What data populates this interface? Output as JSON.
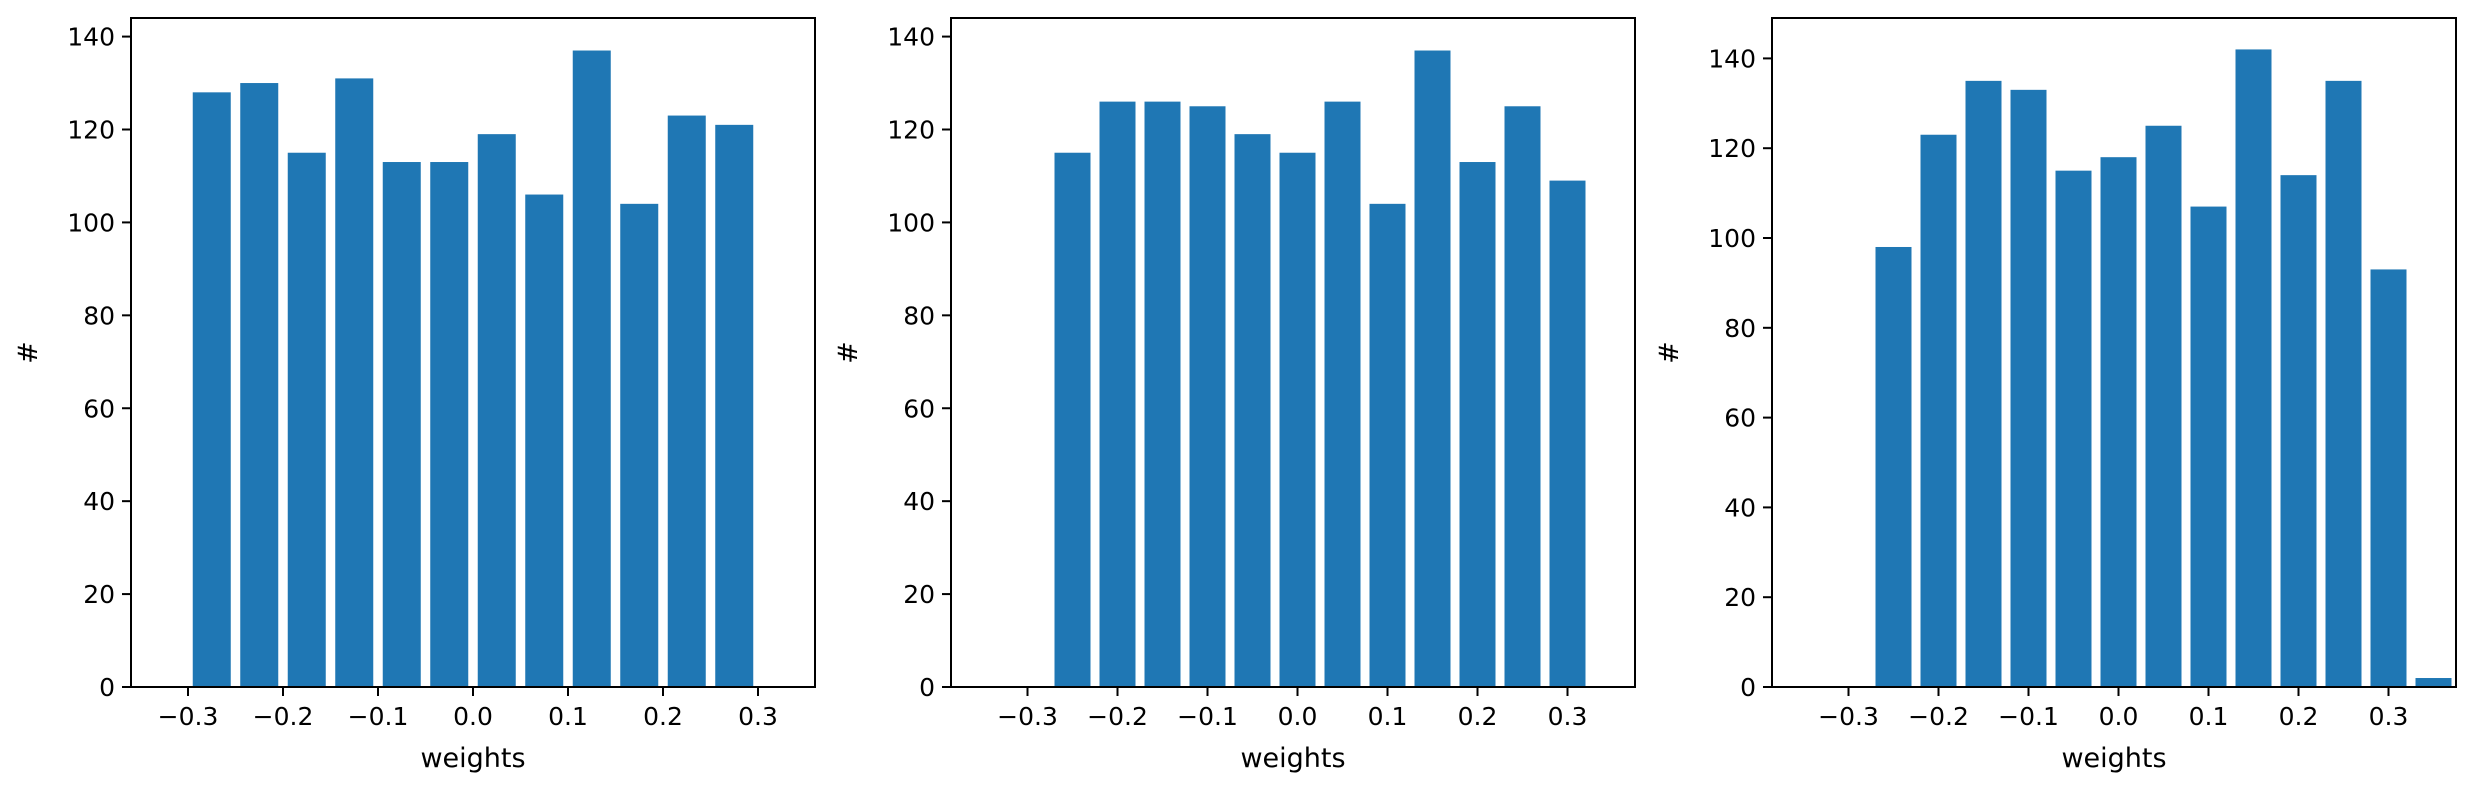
{
  "chart_data": [
    {
      "type": "bar",
      "x": [
        -0.275,
        -0.225,
        -0.175,
        -0.125,
        -0.075,
        -0.025,
        0.025,
        0.075,
        0.125,
        0.175,
        0.225,
        0.275
      ],
      "values": [
        128,
        130,
        115,
        131,
        113,
        113,
        119,
        106,
        137,
        104,
        123,
        121
      ],
      "xlabel": "weights",
      "ylabel": "#",
      "xlim": [
        -0.36,
        0.36
      ],
      "ylim": [
        0,
        144
      ],
      "xticks": [
        -0.3,
        -0.2,
        -0.1,
        0.0,
        0.1,
        0.2,
        0.3
      ],
      "xtick_labels": [
        "−0.3",
        "−0.2",
        "−0.1",
        "0.0",
        "0.1",
        "0.2",
        "0.3"
      ],
      "yticks": [
        0,
        20,
        40,
        60,
        80,
        100,
        120,
        140
      ],
      "ytick_labels": [
        "0",
        "20",
        "40",
        "60",
        "80",
        "100",
        "120",
        "140"
      ],
      "bar_width": 0.04,
      "color": "#1f77b4",
      "grid": false
    },
    {
      "type": "bar",
      "x": [
        -0.3,
        -0.25,
        -0.2,
        -0.15,
        -0.1,
        -0.05,
        0.0,
        0.05,
        0.1,
        0.15,
        0.2,
        0.25,
        0.3
      ],
      "values": [
        0,
        115,
        126,
        126,
        125,
        119,
        115,
        126,
        104,
        137,
        113,
        125,
        109
      ],
      "xlabel": "weights",
      "ylabel": "#",
      "xlim": [
        -0.385,
        0.375
      ],
      "ylim": [
        0,
        144
      ],
      "xticks": [
        -0.3,
        -0.2,
        -0.1,
        0.0,
        0.1,
        0.2,
        0.3
      ],
      "xtick_labels": [
        "−0.3",
        "−0.2",
        "−0.1",
        "0.0",
        "0.1",
        "0.2",
        "0.3"
      ],
      "yticks": [
        0,
        20,
        40,
        60,
        80,
        100,
        120,
        140
      ],
      "ytick_labels": [
        "0",
        "20",
        "40",
        "60",
        "80",
        "100",
        "120",
        "140"
      ],
      "bar_width": 0.04,
      "color": "#1f77b4",
      "grid": false
    },
    {
      "type": "bar",
      "x": [
        -0.3,
        -0.25,
        -0.2,
        -0.15,
        -0.1,
        -0.05,
        0.0,
        0.05,
        0.1,
        0.15,
        0.2,
        0.25,
        0.3,
        0.35
      ],
      "values": [
        0,
        98,
        123,
        135,
        133,
        115,
        118,
        125,
        107,
        142,
        114,
        135,
        93,
        2
      ],
      "xlabel": "weights",
      "ylabel": "#",
      "xlim": [
        -0.385,
        0.375
      ],
      "ylim": [
        0,
        149
      ],
      "xticks": [
        -0.3,
        -0.2,
        -0.1,
        0.0,
        0.1,
        0.2,
        0.3
      ],
      "xtick_labels": [
        "−0.3",
        "−0.2",
        "−0.1",
        "0.0",
        "0.1",
        "0.2",
        "0.3"
      ],
      "yticks": [
        0,
        20,
        40,
        60,
        80,
        100,
        120,
        140
      ],
      "ytick_labels": [
        "0",
        "20",
        "40",
        "60",
        "80",
        "100",
        "120",
        "140"
      ],
      "bar_width": 0.04,
      "color": "#1f77b4",
      "grid": false
    }
  ]
}
